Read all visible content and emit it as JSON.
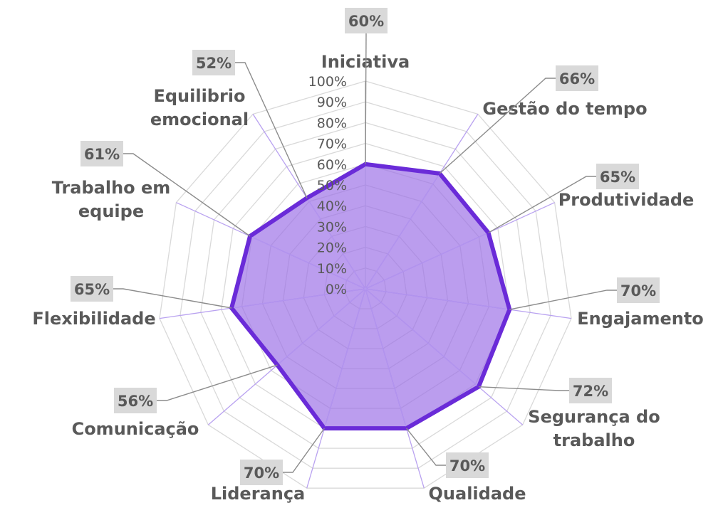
{
  "chart_data": {
    "type": "radar",
    "title": "",
    "categories": [
      "Iniciativa",
      "Gestão do tempo",
      "Produtividade",
      "Engajamento",
      "Segurança do trabalho",
      "Qualidade",
      "Liderança",
      "Comunicação",
      "Flexibilidade",
      "Trabalho em equipe",
      "Equilibrio emocional"
    ],
    "series": [
      {
        "values": [
          60,
          66,
          65,
          70,
          72,
          70,
          70,
          56,
          65,
          61,
          52
        ],
        "data_labels": [
          "60%",
          "66%",
          "65%",
          "70%",
          "72%",
          "70%",
          "70%",
          "56%",
          "65%",
          "61%",
          "52%"
        ]
      }
    ],
    "r_axis": {
      "range": [
        0,
        100
      ],
      "ticks": [
        0,
        10,
        20,
        30,
        40,
        50,
        60,
        70,
        80,
        90,
        100
      ],
      "tick_labels": [
        "0%",
        "10%",
        "20%",
        "30%",
        "40%",
        "50%",
        "60%",
        "70%",
        "80%",
        "90%",
        "100%"
      ]
    },
    "grid": true,
    "legend": "none",
    "colors": {
      "fill": "#9b6fe6",
      "line": "#6a2bd8",
      "spoke": "#b9a2f0",
      "grid": "#d9d9d9",
      "text": "#595959",
      "label_box": "#d9d9d9",
      "leader": "#8c8c8c"
    }
  }
}
